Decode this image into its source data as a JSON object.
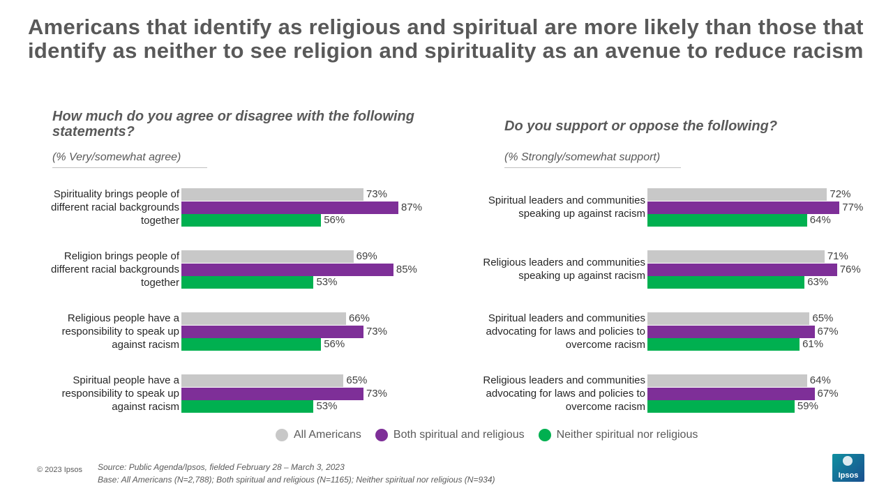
{
  "title": "Americans that identify as religious and spiritual are more likely than those that identify as neither to see religion and spirituality as an avenue to reduce racism",
  "footer": {
    "copyright": "© 2023 Ipsos",
    "source": "Source: Public Agenda/Ipsos, fielded February 28 – March 3, 2023",
    "base": "Base: All Americans (N=2,788);  Both spiritual and religious (N=1165);  Neither spiritual nor religious (N=934)",
    "logo": "Ipsos"
  },
  "chart_data": [
    {
      "type": "bar",
      "title": "How much do you agree or disagree with the following statements?",
      "subtitle": "(% Very/somewhat agree)",
      "categories": [
        "Spirituality brings people of different racial backgrounds together",
        "Religion brings people of different racial backgrounds together",
        "Religious people have a responsibility to speak up against racism",
        "Spiritual people have a responsibility to speak up against racism"
      ],
      "xlim": [
        0,
        100
      ],
      "series": [
        {
          "name": "All Americans",
          "color": "#c8c8c8",
          "values": [
            73,
            69,
            66,
            65
          ],
          "value_labels": [
            "73%",
            "69%",
            "66%",
            "65%"
          ]
        },
        {
          "name": "Both spiritual and religious",
          "color": "#7e2f98",
          "values": [
            87,
            85,
            73,
            73
          ],
          "value_labels": [
            "87%",
            "85%",
            "73%",
            "73%"
          ]
        },
        {
          "name": "Neither spiritual nor religious",
          "color": "#00b050",
          "values": [
            56,
            53,
            56,
            53
          ],
          "value_labels": [
            "56%",
            "53%",
            "56%",
            "53%"
          ]
        }
      ]
    },
    {
      "type": "bar",
      "title": "Do you support or oppose the following?",
      "subtitle": "(% Strongly/somewhat support)",
      "categories": [
        "Spiritual leaders and communities speaking up against racism",
        "Religious leaders and communities speaking up against racism",
        "Spiritual leaders and communities advocating for laws and policies to overcome racism",
        "Religious leaders and communities advocating for laws and policies to overcome racism"
      ],
      "xlim": [
        0,
        100
      ],
      "series": [
        {
          "color": "#c8c8c8",
          "values": [
            72,
            71,
            65,
            64
          ],
          "value_labels": [
            "72%",
            "71%",
            "65%",
            "64%"
          ]
        },
        {
          "color": "#7e2f98",
          "values": [
            77,
            76,
            67,
            67
          ],
          "value_labels": [
            "77%",
            "76%",
            "67%",
            "67%"
          ]
        },
        {
          "color": "#00b050",
          "values": [
            64,
            63,
            61,
            59
          ],
          "value_labels": [
            "64%",
            "63%",
            "61%",
            "59%"
          ]
        }
      ]
    }
  ]
}
